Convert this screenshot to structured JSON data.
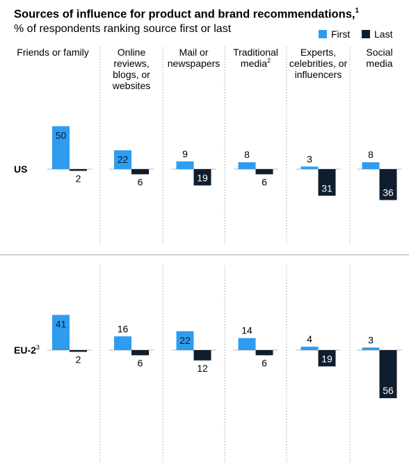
{
  "chart_data": {
    "type": "bar",
    "title": "Sources of influence for product and brand recommendations,",
    "title_footnote": "1",
    "subtitle": "% of respondents ranking source first or last",
    "legend": [
      "First",
      "Last"
    ],
    "colors": {
      "First": "#2f9cf0",
      "Last": "#0f1e2e"
    },
    "categories": [
      {
        "label": "Friends or family"
      },
      {
        "label": "Online reviews, blogs, or websites"
      },
      {
        "label": "Mail or newspapers"
      },
      {
        "label": "Traditional media",
        "footnote": "2"
      },
      {
        "label": "Experts, celebrities, or influencers"
      },
      {
        "label": "Social media"
      }
    ],
    "panels": [
      {
        "region": "US",
        "footnote": "",
        "first": [
          50,
          22,
          9,
          8,
          3,
          8
        ],
        "last": [
          2,
          6,
          19,
          6,
          31,
          36
        ]
      },
      {
        "region": "EU-2",
        "footnote": "3",
        "first": [
          41,
          16,
          22,
          14,
          4,
          3
        ],
        "last": [
          2,
          6,
          12,
          6,
          19,
          56
        ]
      }
    ]
  }
}
